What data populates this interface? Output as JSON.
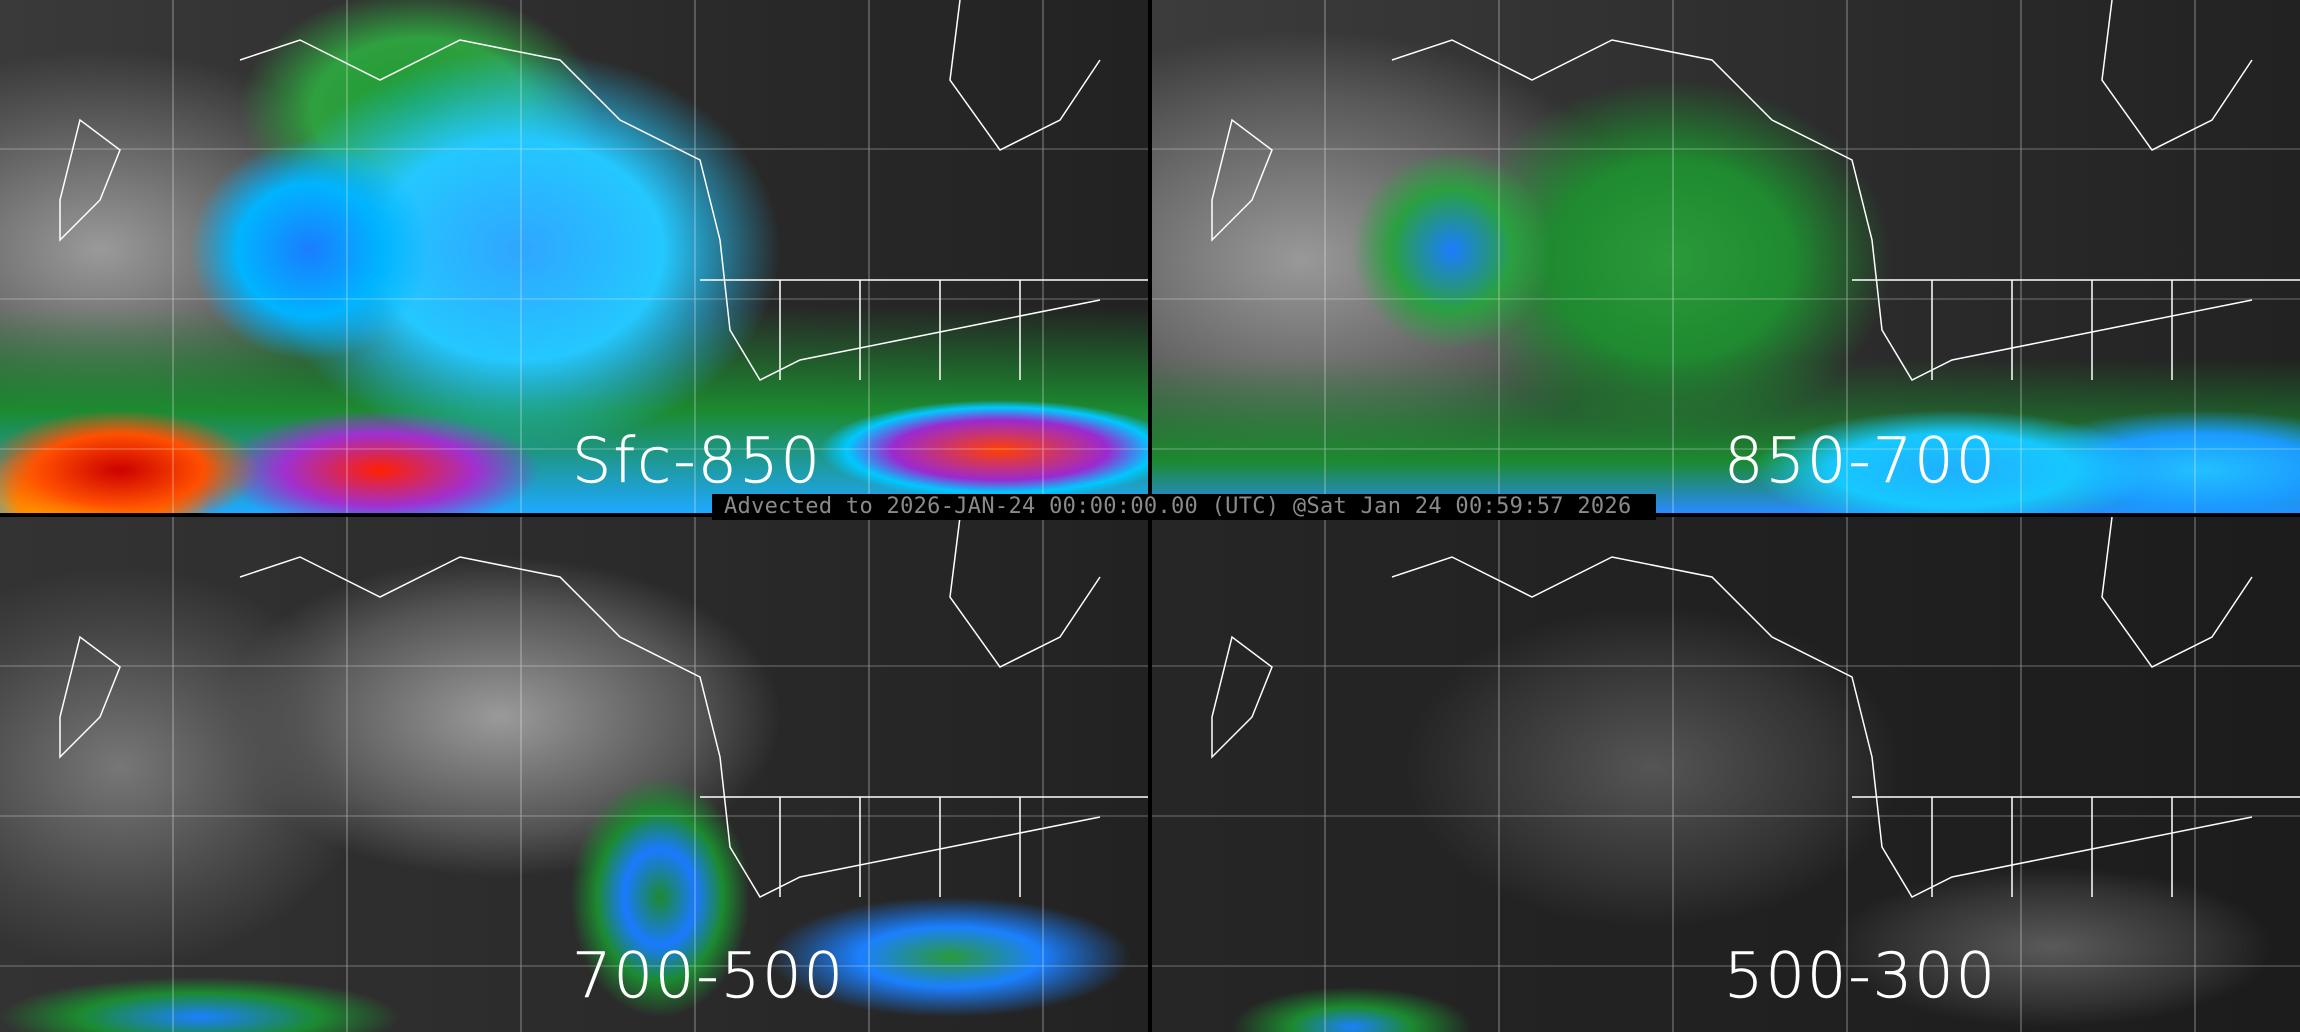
{
  "panels": [
    {
      "label": "Sfc-850"
    },
    {
      "label": "850-700"
    },
    {
      "label": "700-500"
    },
    {
      "label": "500-300"
    }
  ],
  "caption": "Advected to 2026-JAN-24 00:00:00.00 (UTC) @Sat Jan 24 00:59:57 2026",
  "colors": {
    "background": "#000000",
    "moisture_low": "#2a2a2a",
    "moisture_mid": "#1f8a30",
    "moisture_high": "#1b9aff",
    "moisture_very_high": "#24c8ff",
    "moisture_extreme": "#ff4000",
    "overlay_lines": "#ffffff",
    "caption_text": "#8a8a8a"
  }
}
